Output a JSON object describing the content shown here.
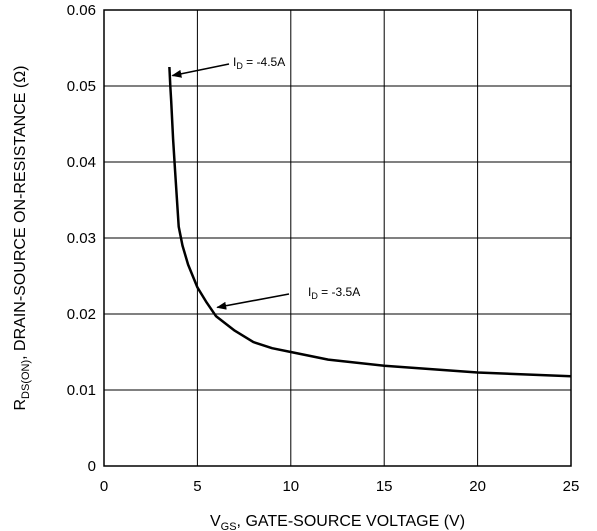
{
  "chart_data": {
    "type": "line",
    "title": "",
    "xlabel": {
      "main": "V",
      "sub": "GS",
      "rest": ", GATE-SOURCE VOLTAGE (V)"
    },
    "ylabel": {
      "main": "R",
      "sub": "DS(ON)",
      "rest": ", DRAIN-SOURCE ON-RESISTANCE (Ω)"
    },
    "xlim": [
      0,
      25
    ],
    "ylim": [
      0,
      0.06
    ],
    "x_ticks": [
      0,
      5,
      10,
      15,
      20,
      25
    ],
    "x_tick_labels": [
      "0",
      "5",
      "10",
      "15",
      "20",
      "25"
    ],
    "y_ticks": [
      0,
      0.01,
      0.02,
      0.03,
      0.04,
      0.05,
      0.06
    ],
    "y_tick_labels": [
      "0",
      "0.01",
      "0.02",
      "0.03",
      "0.04",
      "0.05",
      "0.06"
    ],
    "grid": true,
    "series": [
      {
        "x": [
          3.5,
          3.55,
          3.6,
          3.7,
          3.8,
          4.0,
          4.2,
          4.5,
          5.0,
          5.5,
          6.0,
          7.0,
          8.0,
          9.0,
          10.0,
          12.0,
          15.0,
          20.0,
          25.0
        ],
        "y": [
          0.0525,
          0.05,
          0.048,
          0.043,
          0.039,
          0.0315,
          0.029,
          0.0265,
          0.0235,
          0.0215,
          0.0197,
          0.0178,
          0.0163,
          0.0155,
          0.015,
          0.014,
          0.0132,
          0.0123,
          0.0118
        ]
      }
    ],
    "annotations": [
      {
        "main": "I",
        "sub": "D",
        "rest": " = -4.5A",
        "x": 3.5,
        "y": 0.0515
      },
      {
        "main": "I",
        "sub": "D",
        "rest": " = -3.5A",
        "x": 5.9,
        "y": 0.021
      }
    ]
  }
}
